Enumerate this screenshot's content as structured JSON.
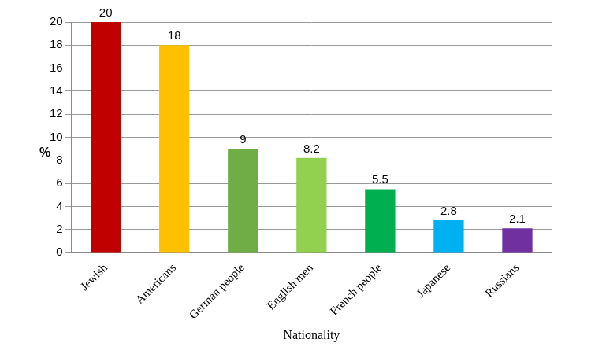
{
  "chart_data": {
    "type": "bar",
    "categories": [
      "Jewish",
      "Americans",
      "German people",
      "English men",
      "French people",
      "Japanese",
      "Russians"
    ],
    "values": [
      20,
      18,
      9,
      8.2,
      5.5,
      2.8,
      2.1
    ],
    "colors": [
      "#c00000",
      "#ffc000",
      "#70ad47",
      "#92d050",
      "#00b050",
      "#00b0f0",
      "#7030a0"
    ],
    "x_label": "Nationality",
    "y_label": "%",
    "ylim": [
      0,
      20
    ],
    "yticks": [
      0,
      2,
      4,
      6,
      8,
      10,
      12,
      14,
      16,
      18,
      20
    ],
    "grid": true,
    "data_labels": true
  }
}
